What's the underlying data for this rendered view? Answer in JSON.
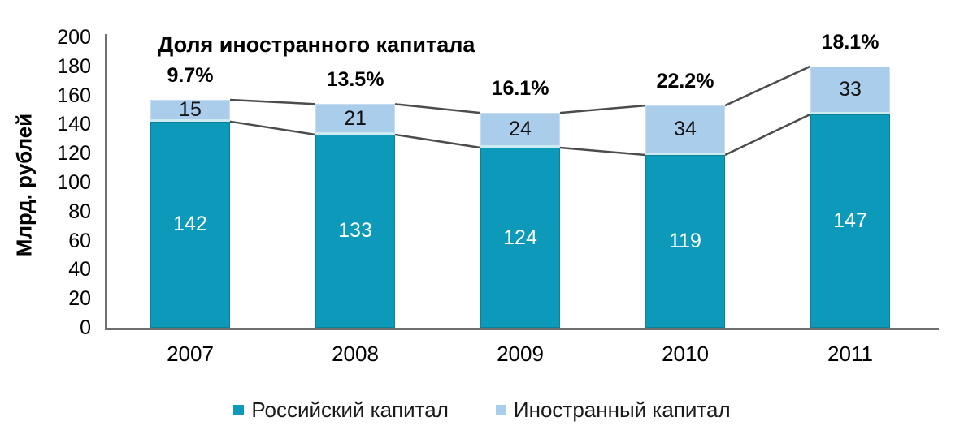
{
  "chart_data": {
    "type": "bar",
    "stacked": true,
    "annotation": "Доля иностранного капитала",
    "ylabel": "Млрд. рублей",
    "xlabel": "",
    "categories": [
      "2007",
      "2008",
      "2009",
      "2010",
      "2011"
    ],
    "series": [
      {
        "name": "Российский капитал",
        "color": "#0d9aba",
        "label_color": "#ffffff",
        "values": [
          142,
          133,
          124,
          119,
          147
        ]
      },
      {
        "name": "Иностранный капитал",
        "color": "#abcdec",
        "label_color": "#111111",
        "values": [
          15,
          21,
          24,
          34,
          33
        ]
      }
    ],
    "percent_labels": [
      "9.7%",
      "13.5%",
      "16.1%",
      "22.2%",
      "18.1%"
    ],
    "ylim": [
      0,
      200
    ],
    "ytick_step": 20,
    "grid": false,
    "legend_position": "bottom",
    "series_lines": true,
    "series_lines_color": "#4c4c4c",
    "axis_color": "#6f6f6f"
  }
}
